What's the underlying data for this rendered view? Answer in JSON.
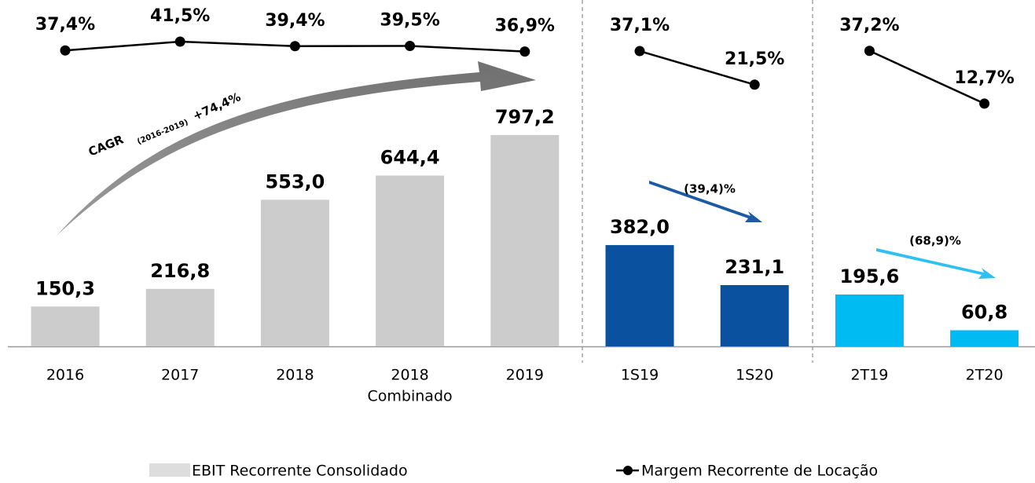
{
  "chart_data": {
    "type": "bar-line",
    "groups": [
      {
        "categories": [
          "2016",
          "2017",
          "2018",
          "2018",
          "2019"
        ],
        "sublabels": [
          null,
          null,
          null,
          "Combinado",
          null
        ],
        "bar_values": [
          150.3,
          216.8,
          553.0,
          644.4,
          797.2
        ],
        "bar_value_labels": [
          "150,3",
          "216,8",
          "553,0",
          "644,4",
          "797,2"
        ],
        "bar_color": "#cccccc",
        "line_values": [
          37.4,
          41.5,
          39.4,
          39.5,
          36.9
        ],
        "line_value_labels": [
          "37,4%",
          "41,5%",
          "39,4%",
          "39,5%",
          "36,9%"
        ]
      },
      {
        "categories": [
          "1S19",
          "1S20"
        ],
        "bar_values": [
          382.0,
          231.1
        ],
        "bar_value_labels": [
          "382,0",
          "231,1"
        ],
        "bar_color": "#0a52a0",
        "line_values": [
          37.1,
          21.5
        ],
        "line_value_labels": [
          "37,1%",
          "21,5%"
        ]
      },
      {
        "categories": [
          "2T19",
          "2T20"
        ],
        "bar_values": [
          195.6,
          60.8
        ],
        "bar_value_labels": [
          "195,6",
          "60,8"
        ],
        "bar_color": "#00bbf2",
        "line_values": [
          37.2,
          12.7
        ],
        "line_value_labels": [
          "37,2%",
          "12,7%"
        ]
      }
    ],
    "series": [
      {
        "name": "EBIT Recorrente Consolidado",
        "color": "#dddddd"
      },
      {
        "name": "Margem Recorrente de Locação",
        "color": "#000000"
      }
    ],
    "annotations": {
      "cagr": "CAGR",
      "cagr_period": "(2016-2019)",
      "cagr_value": "+74,4%",
      "semester_change": "(39,4)%",
      "quarter_change": "(68,9)%"
    }
  }
}
